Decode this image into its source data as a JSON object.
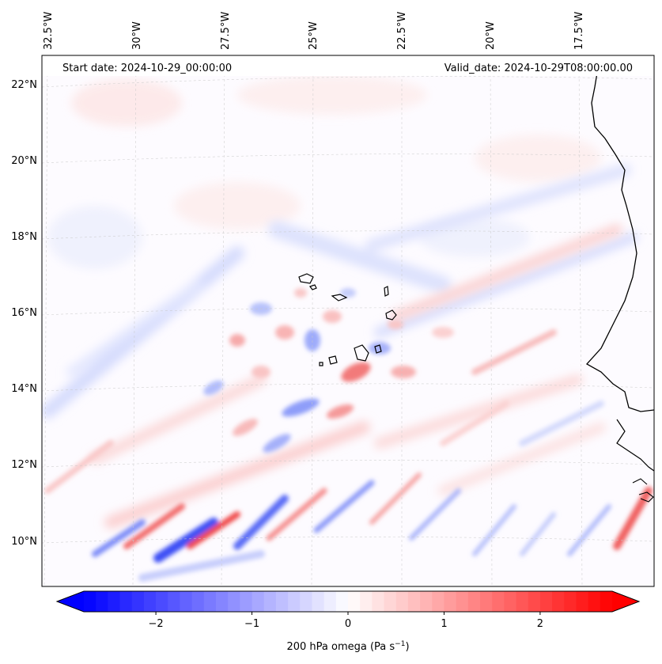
{
  "map": {
    "start_date": "Start date: 2024-10-29_00:00:00",
    "valid_date": "Valid_date: 2024-10-29T08:00:00.00",
    "lon_labels": [
      "32.5°W",
      "30°W",
      "27.5°W",
      "25°W",
      "22.5°W",
      "20°W",
      "17.5°W"
    ],
    "lat_labels": [
      "22°N",
      "20°N",
      "18°N",
      "16°N",
      "14°N",
      "12°N",
      "10°N"
    ],
    "field": "200 hPa omega"
  },
  "colorbar": {
    "label": "200 hPa omega (Pa s",
    "label_sup": "−1",
    "label_end": ")",
    "ticks": [
      "−2",
      "−1",
      "0",
      "1",
      "2"
    ],
    "tick_values": [
      -2,
      -1,
      0,
      1,
      2
    ],
    "range": [
      -2.75,
      2.75
    ],
    "color_low": "#0000ff",
    "color_mid": "#ffffff",
    "color_high": "#ff0000"
  }
}
